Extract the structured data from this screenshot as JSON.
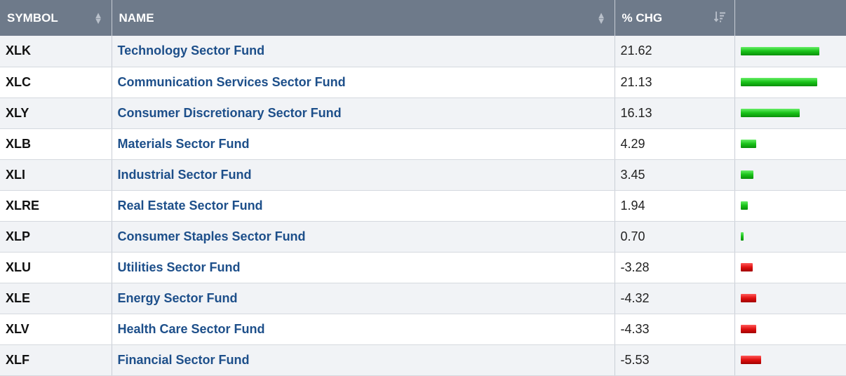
{
  "header": {
    "symbol": "SYMBOL",
    "name": "NAME",
    "chg": "% CHG"
  },
  "rows": [
    {
      "symbol": "XLK",
      "name": "Technology Sector Fund",
      "chg": "21.62",
      "value": 21.62
    },
    {
      "symbol": "XLC",
      "name": "Communication Services Sector Fund",
      "chg": "21.13",
      "value": 21.13
    },
    {
      "symbol": "XLY",
      "name": "Consumer Discretionary Sector Fund",
      "chg": "16.13",
      "value": 16.13
    },
    {
      "symbol": "XLB",
      "name": "Materials Sector Fund",
      "chg": "4.29",
      "value": 4.29
    },
    {
      "symbol": "XLI",
      "name": "Industrial Sector Fund",
      "chg": "3.45",
      "value": 3.45
    },
    {
      "symbol": "XLRE",
      "name": "Real Estate Sector Fund",
      "chg": "1.94",
      "value": 1.94
    },
    {
      "symbol": "XLP",
      "name": "Consumer Staples Sector Fund",
      "chg": "0.70",
      "value": 0.7
    },
    {
      "symbol": "XLU",
      "name": "Utilities Sector Fund",
      "chg": "-3.28",
      "value": -3.28
    },
    {
      "symbol": "XLE",
      "name": "Energy Sector Fund",
      "chg": "-4.32",
      "value": -4.32
    },
    {
      "symbol": "XLV",
      "name": "Health Care Sector Fund",
      "chg": "-4.33",
      "value": -4.33
    },
    {
      "symbol": "XLF",
      "name": "Financial Sector Fund",
      "chg": "-5.53",
      "value": -5.53
    }
  ],
  "colors": {
    "positive": "#19c219",
    "negative": "#e01010",
    "header_bg": "#6e7a8a",
    "link": "#1d4f8a"
  },
  "icons": {
    "symbol_sort": "sort-both-icon",
    "name_sort": "sort-both-icon",
    "chg_sort": "sort-descending-icon"
  }
}
